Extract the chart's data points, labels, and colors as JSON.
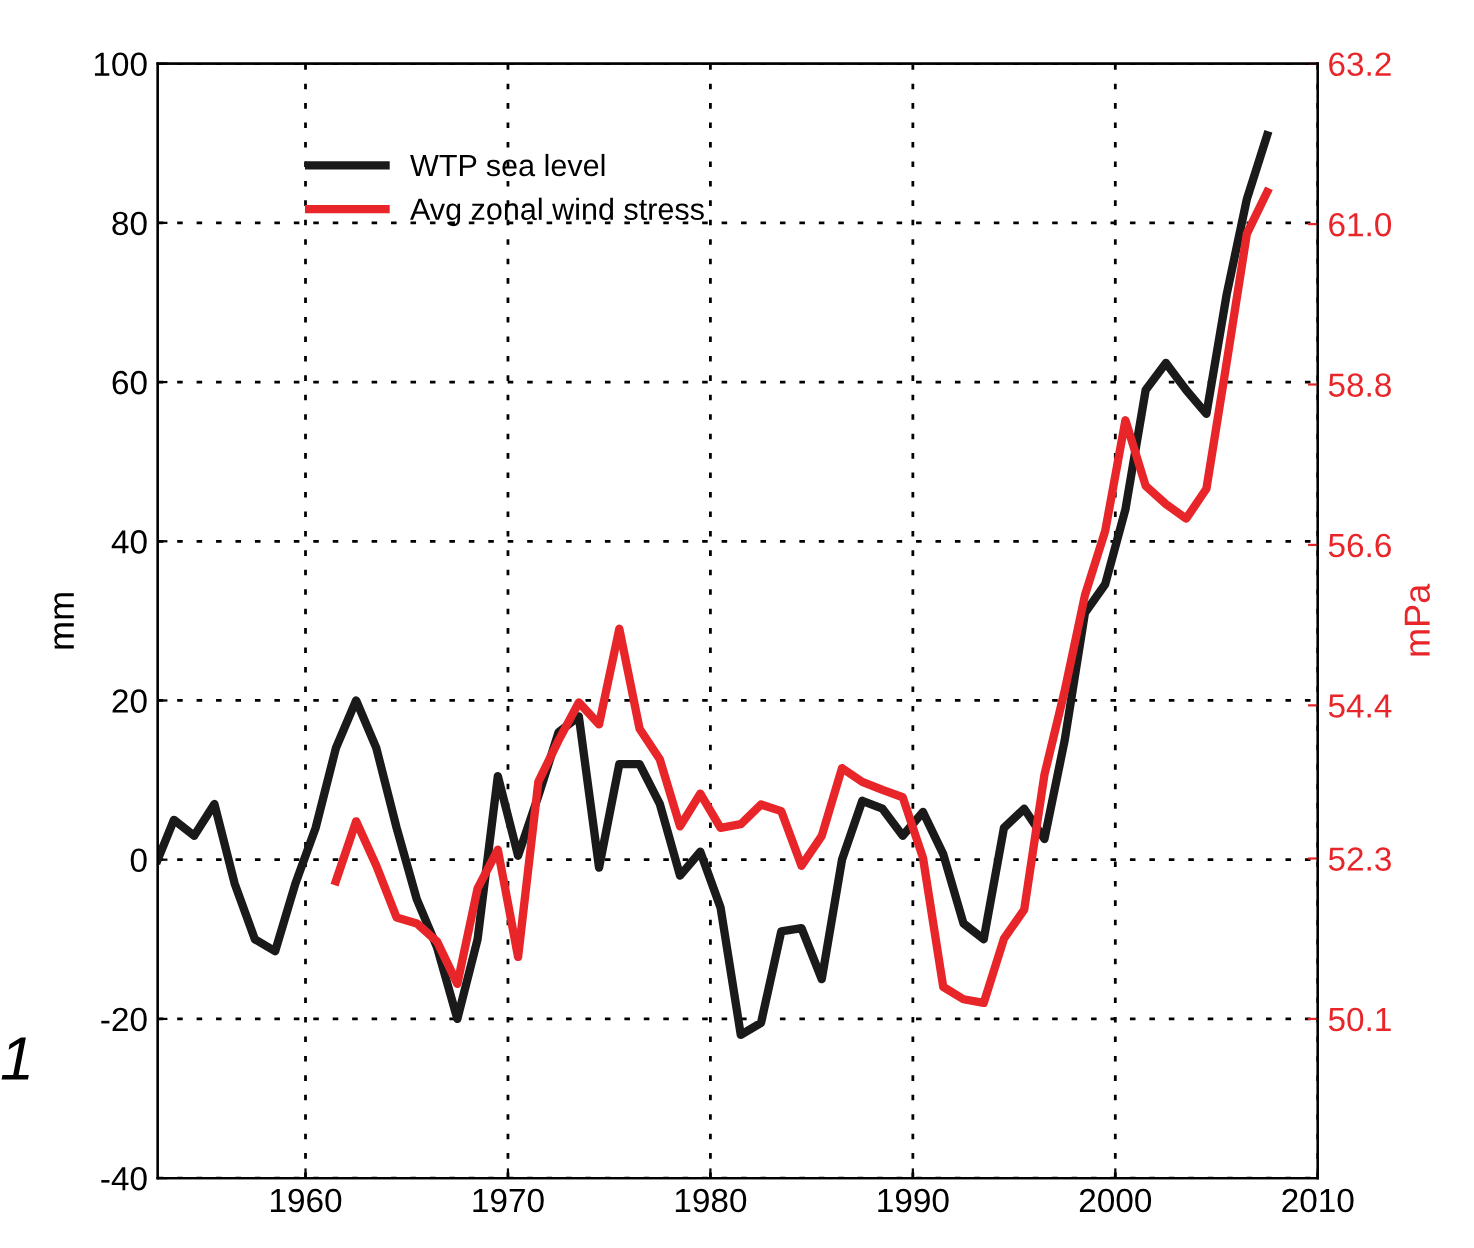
{
  "chart_data": {
    "type": "line",
    "ylabel": "mm",
    "y2label": "mPa",
    "annotations": [
      "1"
    ],
    "xlim": [
      1952.7,
      2010
    ],
    "xticks": [
      1960,
      1970,
      1980,
      1990,
      2000,
      2010
    ],
    "ylim": [
      -40,
      100
    ],
    "yticks": [
      -40,
      -20,
      0,
      20,
      40,
      60,
      80,
      100
    ],
    "y2lim": [
      47.917,
      63.2
    ],
    "y2ticks": [
      50.1,
      52.3,
      54.4,
      56.6,
      58.8,
      {
        "value": 61.0,
        "label": "61.0"
      },
      63.2
    ],
    "grid": true,
    "legend": "top left",
    "line_style": "solid",
    "marker": "none",
    "series": [
      {
        "name": "WTP sea level",
        "color": "#1a1a1a",
        "x": [
          1952.7,
          1953.5,
          1954.5,
          1955.5,
          1956.5,
          1957.5,
          1958.5,
          1959.5,
          1960.5,
          1961.5,
          1962.5,
          1963.5,
          1964.5,
          1965.5,
          1966.5,
          1967.5,
          1968.5,
          1969.5,
          1970.5,
          1971.5,
          1972.5,
          1973.5,
          1974.5,
          1975.5,
          1976.5,
          1977.5,
          1978.5,
          1979.5,
          1980.5,
          1981.5,
          1982.5,
          1983.5,
          1984.5,
          1985.5,
          1986.5,
          1987.5,
          1988.5,
          1989.5,
          1990.5,
          1991.5,
          1992.5,
          1993.5,
          1994.5,
          1995.5,
          1996.5,
          1997.5,
          1998.5,
          1999.5,
          2000.5,
          2001.5,
          2002.5,
          2003.5,
          2004.5,
          2005.5,
          2006.5,
          2007.5
        ],
        "values": [
          0,
          5,
          3,
          7,
          -3,
          -10,
          -11.5,
          -3,
          4,
          14,
          20,
          14,
          4,
          -5,
          -11,
          -20,
          -10,
          10.5,
          0.5,
          8,
          16,
          18,
          -1,
          12,
          12,
          7,
          -2,
          1,
          -6,
          -22,
          -20.5,
          -9,
          -8.6,
          -15,
          0,
          7.4,
          6.4,
          3,
          6,
          0.7,
          -8,
          -10,
          4,
          6.4,
          2.6,
          15,
          31,
          34.6,
          44,
          59,
          62.4,
          59,
          56,
          71,
          83,
          91
        ]
      },
      {
        "name": "Avg zonal wind stress",
        "color": "#e8262a",
        "axis": "y2",
        "x": [
          1961.5,
          1962.5,
          1963.5,
          1964.5,
          1965.5,
          1966.5,
          1967.5,
          1968.5,
          1969.5,
          1970.5,
          1971.5,
          1972.5,
          1973.5,
          1974.5,
          1975.5,
          1976.5,
          1977.5,
          1978.5,
          1979.5,
          1980.5,
          1981.5,
          1982.5,
          1983.5,
          1984.5,
          1985.5,
          1986.5,
          1987.5,
          1988.5,
          1989.5,
          1990.5,
          1991.5,
          1992.5,
          1993.5,
          1994.5,
          1995.5,
          1996.5,
          1997.5,
          1998.5,
          1999.5,
          2000.5,
          2001.5,
          2002.5,
          2003.5,
          2004.5,
          2005.5,
          2006.5,
          2007.5
        ],
        "values": [
          51.99,
          52.81,
          52.2,
          51.49,
          51.41,
          51.16,
          50.58,
          51.89,
          52.42,
          50.95,
          53.35,
          53.92,
          54.44,
          54.14,
          55.45,
          54.08,
          53.66,
          52.74,
          53.19,
          52.72,
          52.77,
          53.04,
          52.95,
          52.2,
          52.61,
          53.54,
          53.35,
          53.24,
          53.14,
          52.31,
          50.54,
          50.37,
          50.32,
          51.2,
          51.6,
          53.45,
          54.6,
          55.91,
          56.79,
          58.31,
          57.41,
          57.16,
          56.96,
          57.37,
          59.1,
          60.87,
          61.44
        ]
      }
    ]
  }
}
